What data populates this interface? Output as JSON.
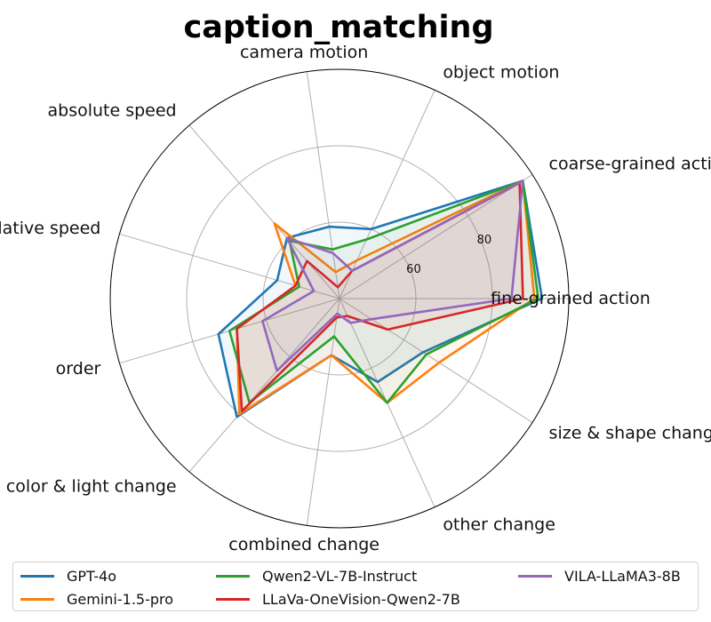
{
  "chart_data": {
    "type": "radar",
    "title": "caption_matching",
    "axes": [
      "fine-grained action",
      "coarse-grained action",
      "object motion",
      "camera motion",
      "absolute speed",
      "relative speed",
      "order",
      "color & light change",
      "combined change",
      "other change",
      "size & shape change"
    ],
    "rlim": [
      40,
      100
    ],
    "rticks": [
      60,
      80
    ],
    "rtick_labels": [
      "60",
      "80"
    ],
    "grid": true,
    "legend_position": "bottom",
    "series": [
      {
        "name": "GPT-4o",
        "color": "#1f77b4",
        "values": [
          93,
          97,
          60,
          59,
          61,
          57,
          73,
          81,
          55,
          64,
          66
        ]
      },
      {
        "name": "Gemini-1.5-pro",
        "color": "#ff7f0e",
        "values": [
          91,
          97,
          51,
          47,
          66,
          52,
          68,
          80,
          55,
          70,
          71
        ]
      },
      {
        "name": "Qwen2-VL-7B-Instruct",
        "color": "#2ca02c",
        "values": [
          92,
          97,
          57,
          53,
          60,
          51,
          70,
          76,
          50,
          70,
          67
        ]
      },
      {
        "name": "LLaVa-OneVision-Qwen2-7B",
        "color": "#d62728",
        "values": [
          88,
          96,
          48,
          43,
          53,
          52,
          68,
          79,
          45,
          45,
          55
        ]
      },
      {
        "name": "VILA-LLaMA3-8B",
        "color": "#9467bd",
        "values": [
          85,
          97,
          48,
          52,
          61,
          47,
          61,
          65,
          44,
          47,
          50
        ]
      }
    ]
  }
}
